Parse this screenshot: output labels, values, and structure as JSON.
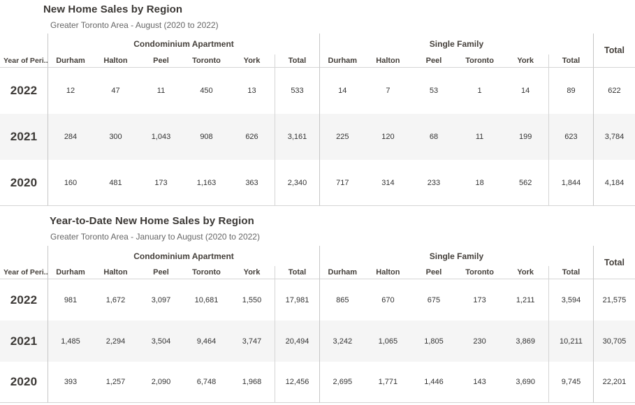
{
  "chart_data": [
    {
      "type": "table",
      "title": "New Home Sales by Region",
      "subtitle": "Greater Toronto Area - August (2020 to 2022)",
      "row_header": "Year of Peri..",
      "group_headers": [
        "Condominium Apartment",
        "Single Family"
      ],
      "grand_total_header": "Total",
      "columns": [
        "Durham",
        "Halton",
        "Peel",
        "Toronto",
        "York",
        "Total"
      ],
      "rows": [
        {
          "year": "2022",
          "condominium_apartment": [
            "12",
            "47",
            "11",
            "450",
            "13",
            "533"
          ],
          "single_family": [
            "14",
            "7",
            "53",
            "1",
            "14",
            "89"
          ],
          "grand_total": "622"
        },
        {
          "year": "2021",
          "condominium_apartment": [
            "284",
            "300",
            "1,043",
            "908",
            "626",
            "3,161"
          ],
          "single_family": [
            "225",
            "120",
            "68",
            "11",
            "199",
            "623"
          ],
          "grand_total": "3,784"
        },
        {
          "year": "2020",
          "condominium_apartment": [
            "160",
            "481",
            "173",
            "1,163",
            "363",
            "2,340"
          ],
          "single_family": [
            "717",
            "314",
            "233",
            "18",
            "562",
            "1,844"
          ],
          "grand_total": "4,184"
        }
      ]
    },
    {
      "type": "table",
      "title": "Year-to-Date New Home Sales by Region",
      "subtitle": "Greater Toronto Area - January to August (2020 to 2022)",
      "row_header": "Year of Peri..",
      "group_headers": [
        "Condominium Apartment",
        "Single Family"
      ],
      "grand_total_header": "Total",
      "columns": [
        "Durham",
        "Halton",
        "Peel",
        "Toronto",
        "York",
        "Total"
      ],
      "rows": [
        {
          "year": "2022",
          "condominium_apartment": [
            "981",
            "1,672",
            "3,097",
            "10,681",
            "1,550",
            "17,981"
          ],
          "single_family": [
            "865",
            "670",
            "675",
            "173",
            "1,211",
            "3,594"
          ],
          "grand_total": "21,575"
        },
        {
          "year": "2021",
          "condominium_apartment": [
            "1,485",
            "2,294",
            "3,504",
            "9,464",
            "3,747",
            "20,494"
          ],
          "single_family": [
            "3,242",
            "1,065",
            "1,805",
            "230",
            "3,869",
            "10,211"
          ],
          "grand_total": "30,705"
        },
        {
          "year": "2020",
          "condominium_apartment": [
            "393",
            "1,257",
            "2,090",
            "6,748",
            "1,968",
            "12,456"
          ],
          "single_family": [
            "2,695",
            "1,771",
            "1,446",
            "143",
            "3,690",
            "9,745"
          ],
          "grand_total": "22,201"
        }
      ]
    }
  ],
  "colors": {
    "title_text": "#3b3835",
    "subtitle_text": "#666666",
    "header_text": "#45403b",
    "value_text": "#333333",
    "row_stripe": "#f5f5f5",
    "grid_line": "#d5d5d5",
    "separator_line": "#c6c6c6"
  }
}
